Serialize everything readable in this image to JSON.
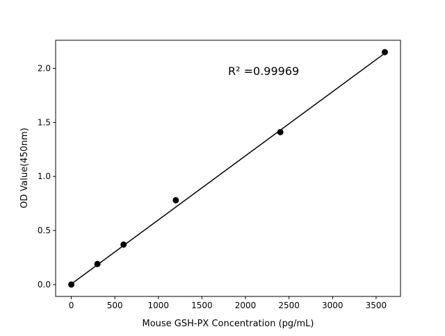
{
  "chart_data": {
    "type": "scatter",
    "title": "",
    "xlabel": "Mouse GSH-PX Concentration (pg/mL)",
    "ylabel": "OD Value(450nm)",
    "xlim": [
      -180,
      3780
    ],
    "ylim": [
      -0.11,
      2.26
    ],
    "xticks": [
      0,
      500,
      1000,
      1500,
      2000,
      2500,
      3000,
      3500
    ],
    "xtick_labels": [
      "0",
      "500",
      "1000",
      "1500",
      "2000",
      "2500",
      "3000",
      "3500"
    ],
    "yticks": [
      0.0,
      0.5,
      1.0,
      1.5,
      2.0
    ],
    "ytick_labels": [
      "0.0",
      "0.5",
      "1.0",
      "1.5",
      "2.0"
    ],
    "grid": false,
    "series": [
      {
        "x": [
          0,
          300,
          600,
          1200,
          2400,
          3600
        ],
        "y": [
          0.0,
          0.19,
          0.37,
          0.78,
          1.41,
          2.15
        ],
        "color": "#000000",
        "marker": "circle"
      }
    ],
    "fit_line": {
      "x": [
        0,
        3600
      ],
      "y": [
        0.005,
        2.14
      ],
      "color": "#000000"
    },
    "annotation": "R² =0.99969"
  }
}
